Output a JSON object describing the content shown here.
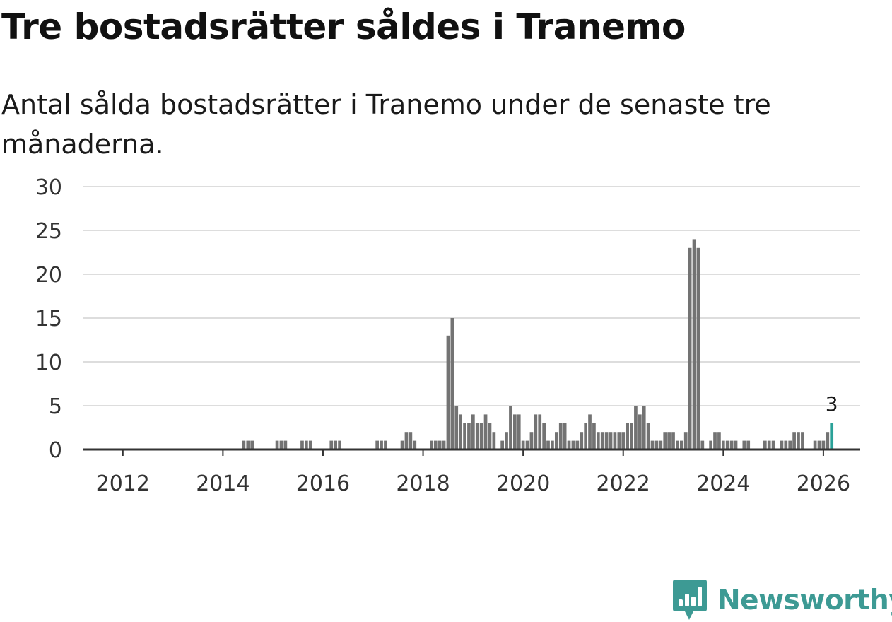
{
  "title": "Tre bostadsrätter såldes i Tranemo",
  "subtitle": "Antal sålda bostadsrätter i Tranemo under de senaste tre månaderna.",
  "brand": {
    "name": "Newsworthy",
    "color": "#3d9a94"
  },
  "colors": {
    "bar": "#737373",
    "highlight": "#2aa198",
    "grid": "#dddddd",
    "axis": "#333333"
  },
  "chart_data": {
    "type": "bar",
    "title": "Tre bostadsrätter såldes i Tranemo",
    "xlabel": "",
    "ylabel": "",
    "ylim": [
      0,
      30
    ],
    "yticks": [
      0,
      5,
      10,
      15,
      20,
      25,
      30
    ],
    "x_start": "2011-01",
    "x_end": "2026-10",
    "xticks": [
      "2012",
      "2014",
      "2016",
      "2018",
      "2020",
      "2022",
      "2024",
      "2026"
    ],
    "grid": true,
    "legend": "none",
    "highlight_label": "3",
    "series": [
      {
        "name": "Antal sålda bostadsrätter",
        "points": [
          [
            "2014-06",
            1
          ],
          [
            "2014-07",
            1
          ],
          [
            "2014-08",
            1
          ],
          [
            "2015-02",
            1
          ],
          [
            "2015-03",
            1
          ],
          [
            "2015-04",
            1
          ],
          [
            "2015-08",
            1
          ],
          [
            "2015-09",
            1
          ],
          [
            "2015-10",
            1
          ],
          [
            "2016-03",
            1
          ],
          [
            "2016-04",
            1
          ],
          [
            "2016-05",
            1
          ],
          [
            "2017-02",
            1
          ],
          [
            "2017-03",
            1
          ],
          [
            "2017-04",
            1
          ],
          [
            "2017-08",
            1
          ],
          [
            "2017-09",
            2
          ],
          [
            "2017-10",
            2
          ],
          [
            "2017-11",
            1
          ],
          [
            "2018-03",
            1
          ],
          [
            "2018-04",
            1
          ],
          [
            "2018-05",
            1
          ],
          [
            "2018-06",
            1
          ],
          [
            "2018-07",
            13
          ],
          [
            "2018-08",
            15
          ],
          [
            "2018-09",
            5
          ],
          [
            "2018-10",
            4
          ],
          [
            "2018-11",
            3
          ],
          [
            "2018-12",
            3
          ],
          [
            "2019-01",
            4
          ],
          [
            "2019-02",
            3
          ],
          [
            "2019-03",
            3
          ],
          [
            "2019-04",
            4
          ],
          [
            "2019-05",
            3
          ],
          [
            "2019-06",
            2
          ],
          [
            "2019-08",
            1
          ],
          [
            "2019-09",
            2
          ],
          [
            "2019-10",
            5
          ],
          [
            "2019-11",
            4
          ],
          [
            "2019-12",
            4
          ],
          [
            "2020-01",
            1
          ],
          [
            "2020-02",
            1
          ],
          [
            "2020-03",
            2
          ],
          [
            "2020-04",
            4
          ],
          [
            "2020-05",
            4
          ],
          [
            "2020-06",
            3
          ],
          [
            "2020-07",
            1
          ],
          [
            "2020-08",
            1
          ],
          [
            "2020-09",
            2
          ],
          [
            "2020-10",
            3
          ],
          [
            "2020-11",
            3
          ],
          [
            "2020-12",
            1
          ],
          [
            "2021-01",
            1
          ],
          [
            "2021-02",
            1
          ],
          [
            "2021-03",
            2
          ],
          [
            "2021-04",
            3
          ],
          [
            "2021-05",
            4
          ],
          [
            "2021-06",
            3
          ],
          [
            "2021-07",
            2
          ],
          [
            "2021-08",
            2
          ],
          [
            "2021-09",
            2
          ],
          [
            "2021-10",
            2
          ],
          [
            "2021-11",
            2
          ],
          [
            "2021-12",
            2
          ],
          [
            "2022-01",
            2
          ],
          [
            "2022-02",
            3
          ],
          [
            "2022-03",
            3
          ],
          [
            "2022-04",
            5
          ],
          [
            "2022-05",
            4
          ],
          [
            "2022-06",
            5
          ],
          [
            "2022-07",
            3
          ],
          [
            "2022-08",
            1
          ],
          [
            "2022-09",
            1
          ],
          [
            "2022-10",
            1
          ],
          [
            "2022-11",
            2
          ],
          [
            "2022-12",
            2
          ],
          [
            "2023-01",
            2
          ],
          [
            "2023-02",
            1
          ],
          [
            "2023-03",
            1
          ],
          [
            "2023-04",
            2
          ],
          [
            "2023-05",
            23
          ],
          [
            "2023-06",
            24
          ],
          [
            "2023-07",
            23
          ],
          [
            "2023-08",
            1
          ],
          [
            "2023-10",
            1
          ],
          [
            "2023-11",
            2
          ],
          [
            "2023-12",
            2
          ],
          [
            "2024-01",
            1
          ],
          [
            "2024-02",
            1
          ],
          [
            "2024-03",
            1
          ],
          [
            "2024-04",
            1
          ],
          [
            "2024-06",
            1
          ],
          [
            "2024-07",
            1
          ],
          [
            "2024-11",
            1
          ],
          [
            "2024-12",
            1
          ],
          [
            "2025-01",
            1
          ],
          [
            "2025-03",
            1
          ],
          [
            "2025-04",
            1
          ],
          [
            "2025-05",
            1
          ],
          [
            "2025-06",
            2
          ],
          [
            "2025-07",
            2
          ],
          [
            "2025-08",
            2
          ],
          [
            "2025-11",
            1
          ],
          [
            "2025-12",
            1
          ],
          [
            "2026-01",
            1
          ],
          [
            "2026-02",
            2
          ],
          [
            "2026-03",
            3
          ]
        ],
        "highlight": "2026-03"
      }
    ]
  }
}
